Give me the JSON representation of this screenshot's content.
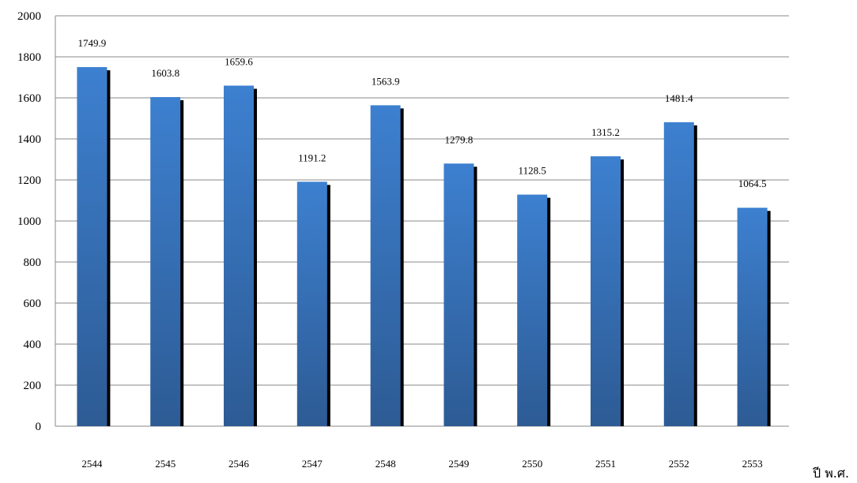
{
  "chart_data": {
    "type": "bar",
    "categories": [
      "2544",
      "2545",
      "2546",
      "2547",
      "2548",
      "2549",
      "2550",
      "2551",
      "2552",
      "2553"
    ],
    "values": [
      1749.9,
      1603.8,
      1659.6,
      1191.2,
      1563.9,
      1279.8,
      1128.5,
      1315.2,
      1481.4,
      1064.5
    ],
    "data_labels": [
      "1749.9",
      "1603.8",
      "1659.6",
      "1191.2",
      "1563.9",
      "1279.8",
      "1128.5",
      "1315.2",
      "1481.4",
      "1064.5"
    ],
    "xlabel": "ปี พ.ศ.",
    "ylabel": "",
    "ylim": [
      0,
      2000
    ],
    "yticks": [
      0,
      200,
      400,
      600,
      800,
      1000,
      1200,
      1400,
      1600,
      1800,
      2000
    ],
    "grid": true,
    "legend": "none",
    "colors": {
      "bar_top": "#3d80d0",
      "bar_bottom": "#2d5b94",
      "shadow": "#000000",
      "grid": "#888888"
    }
  }
}
